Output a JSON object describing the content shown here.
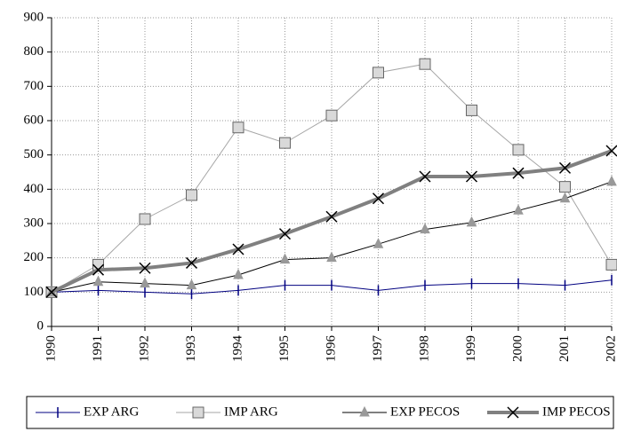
{
  "chart_data": {
    "type": "line",
    "categories": [
      "1990",
      "1991",
      "1992",
      "1993",
      "1994",
      "1995",
      "1996",
      "1997",
      "1998",
      "1999",
      "2000",
      "2001",
      "2002"
    ],
    "series": [
      {
        "name": "EXP ARG",
        "color": "#000080",
        "marker": "plus",
        "line_width": 1,
        "values": [
          100,
          105,
          100,
          95,
          105,
          120,
          120,
          105,
          120,
          125,
          125,
          120,
          135
        ]
      },
      {
        "name": "IMP ARG",
        "color": "#a6a6a6",
        "marker": "square",
        "line_width": 1,
        "values": [
          100,
          180,
          313,
          383,
          580,
          535,
          615,
          740,
          765,
          630,
          515,
          407,
          180
        ]
      },
      {
        "name": "EXP PECOS",
        "color": "#000000",
        "marker": "triangle",
        "line_width": 1,
        "values": [
          100,
          130,
          125,
          120,
          150,
          195,
          200,
          240,
          283,
          303,
          338,
          373,
          422
        ]
      },
      {
        "name": "IMP PECOS",
        "color": "#808080",
        "marker": "x",
        "line_width": 4,
        "values": [
          100,
          165,
          170,
          185,
          225,
          270,
          320,
          373,
          437,
          437,
          447,
          462,
          512
        ]
      }
    ],
    "ylim": [
      0,
      900
    ],
    "yticks": [
      0,
      100,
      200,
      300,
      400,
      500,
      600,
      700,
      800,
      900
    ],
    "grid": true
  }
}
